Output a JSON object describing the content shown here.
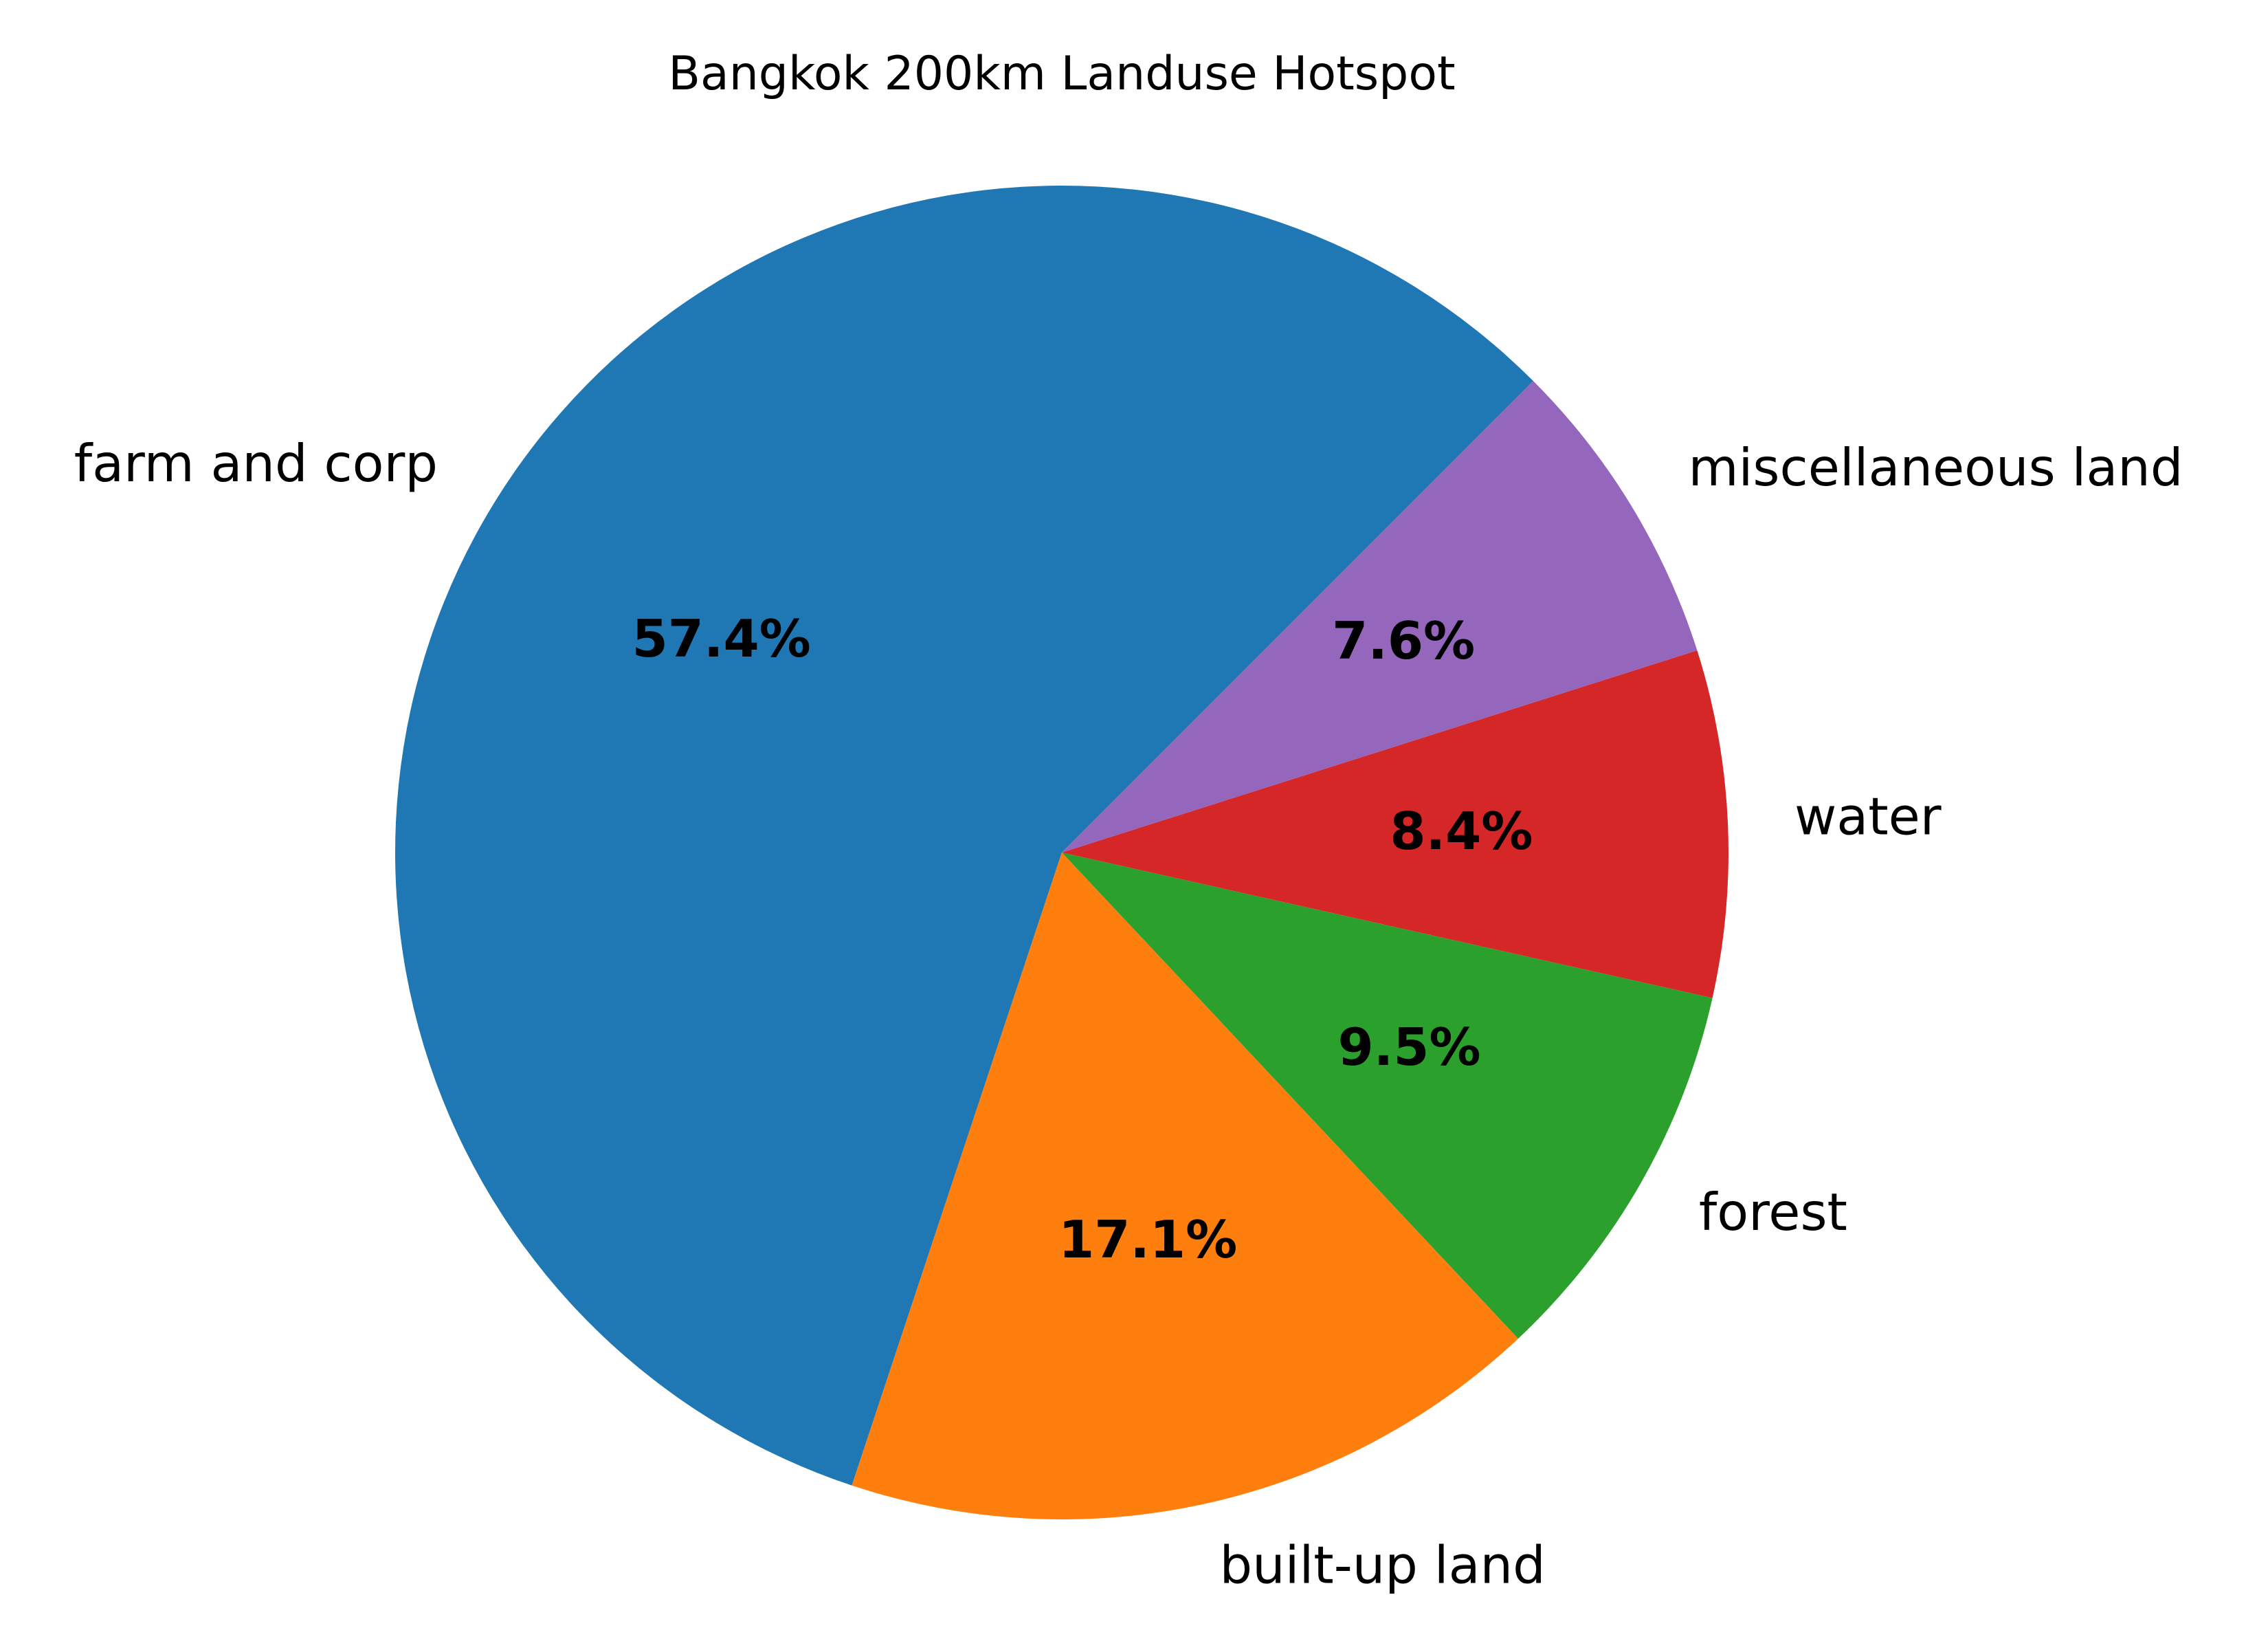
{
  "chart_data": {
    "type": "pie",
    "title": "Bangkok 200km Landuse Hotspot",
    "slices": [
      {
        "label": "farm and corp",
        "value": 57.4,
        "pct_label": "57.4%",
        "color": "#1f77b4"
      },
      {
        "label": "built-up land",
        "value": 17.1,
        "pct_label": "17.1%",
        "color": "#ff7f0e"
      },
      {
        "label": "forest",
        "value": 9.5,
        "pct_label": "9.5%",
        "color": "#2ca02c"
      },
      {
        "label": "water",
        "value": 8.4,
        "pct_label": "8.4%",
        "color": "#d62728"
      },
      {
        "label": "miscellaneous land",
        "value": 7.6,
        "pct_label": "7.6%",
        "color": "#9467bd"
      }
    ],
    "start_angle_deg": 45,
    "direction": "counterclockwise",
    "legend": "none"
  }
}
